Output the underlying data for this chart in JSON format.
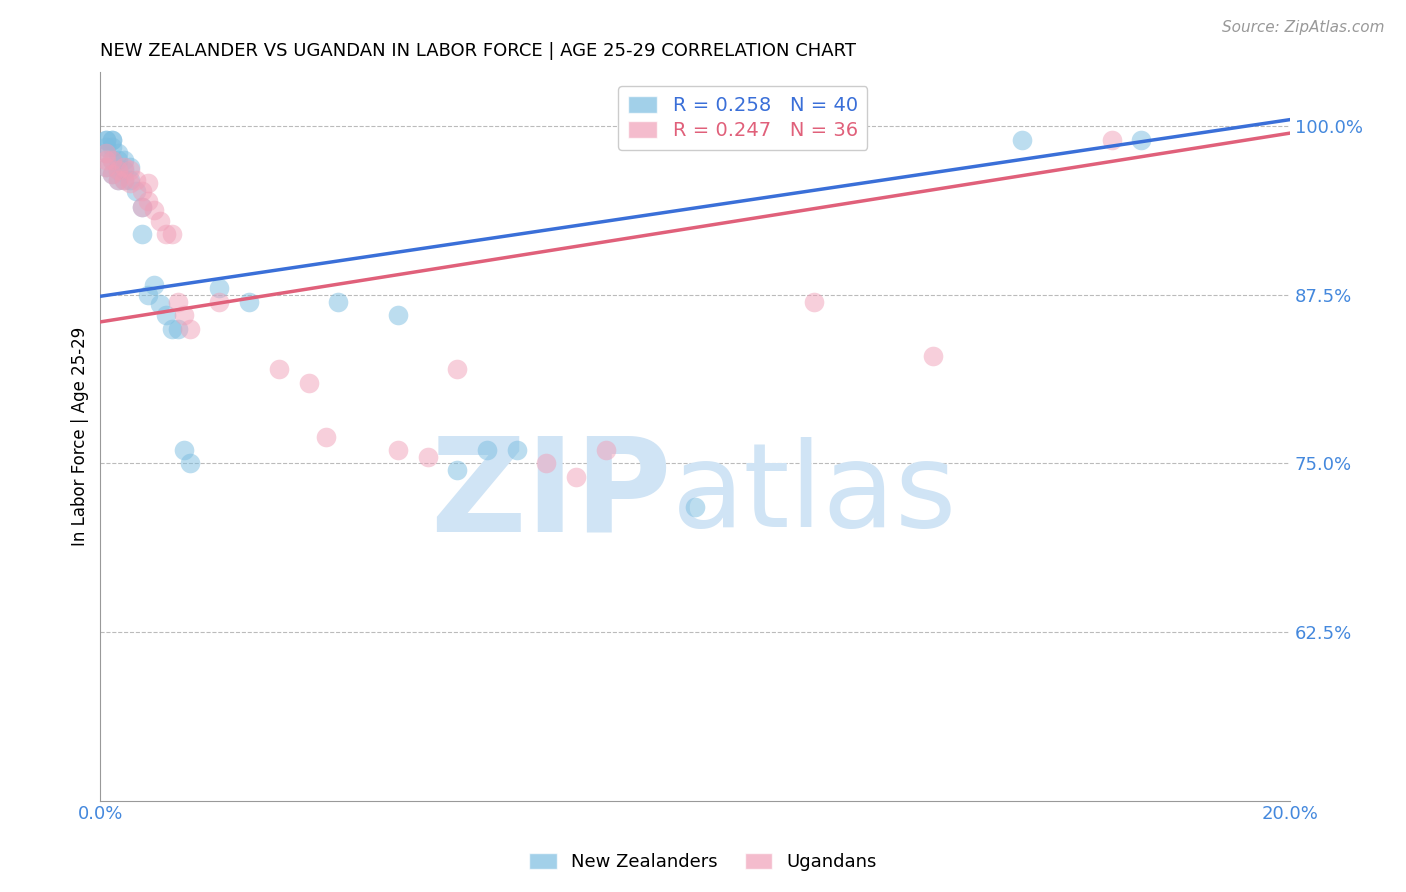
{
  "title": "NEW ZEALANDER VS UGANDAN IN LABOR FORCE | AGE 25-29 CORRELATION CHART",
  "source": "Source: ZipAtlas.com",
  "ylabel": "In Labor Force | Age 25-29",
  "xlim": [
    0.0,
    0.2
  ],
  "ylim": [
    0.5,
    1.04
  ],
  "xticks": [
    0.0,
    0.02,
    0.04,
    0.06,
    0.08,
    0.1,
    0.12,
    0.14,
    0.16,
    0.18,
    0.2
  ],
  "xticklabels": [
    "0.0%",
    "",
    "",
    "",
    "",
    "",
    "",
    "",
    "",
    "",
    "20.0%"
  ],
  "yticks": [
    0.625,
    0.75,
    0.875,
    1.0
  ],
  "yticklabels": [
    "62.5%",
    "75.0%",
    "87.5%",
    "100.0%"
  ],
  "nz_color": "#7bbde0",
  "ug_color": "#f0a0b8",
  "nz_line_color": "#3a6fd8",
  "ug_line_color": "#e0607a",
  "nz_R": 0.258,
  "nz_N": 40,
  "ug_R": 0.247,
  "ug_N": 36,
  "watermark_color": "#d0e4f5",
  "legend_label_nz": "New Zealanders",
  "legend_label_ug": "Ugandans",
  "nz_x": [
    0.001,
    0.001,
    0.001,
    0.001,
    0.001,
    0.002,
    0.002,
    0.002,
    0.002,
    0.002,
    0.003,
    0.003,
    0.003,
    0.003,
    0.004,
    0.004,
    0.004,
    0.005,
    0.005,
    0.006,
    0.007,
    0.007,
    0.008,
    0.009,
    0.01,
    0.011,
    0.012,
    0.013,
    0.014,
    0.015,
    0.02,
    0.025,
    0.04,
    0.05,
    0.06,
    0.065,
    0.07,
    0.1,
    0.155,
    0.175
  ],
  "nz_y": [
    0.99,
    0.99,
    0.985,
    0.98,
    0.97,
    0.99,
    0.99,
    0.985,
    0.975,
    0.965,
    0.98,
    0.975,
    0.968,
    0.96,
    0.975,
    0.968,
    0.96,
    0.97,
    0.96,
    0.952,
    0.94,
    0.92,
    0.875,
    0.882,
    0.868,
    0.86,
    0.85,
    0.85,
    0.76,
    0.75,
    0.88,
    0.87,
    0.87,
    0.86,
    0.745,
    0.76,
    0.76,
    0.718,
    0.99,
    0.99
  ],
  "ug_x": [
    0.001,
    0.001,
    0.001,
    0.002,
    0.002,
    0.003,
    0.003,
    0.004,
    0.004,
    0.005,
    0.005,
    0.006,
    0.007,
    0.007,
    0.008,
    0.008,
    0.009,
    0.01,
    0.011,
    0.012,
    0.013,
    0.014,
    0.015,
    0.02,
    0.03,
    0.035,
    0.038,
    0.05,
    0.055,
    0.06,
    0.075,
    0.08,
    0.085,
    0.12,
    0.14,
    0.17
  ],
  "ug_y": [
    0.98,
    0.975,
    0.97,
    0.975,
    0.965,
    0.968,
    0.96,
    0.97,
    0.96,
    0.968,
    0.958,
    0.96,
    0.952,
    0.94,
    0.958,
    0.945,
    0.938,
    0.93,
    0.92,
    0.92,
    0.87,
    0.86,
    0.85,
    0.87,
    0.82,
    0.81,
    0.77,
    0.76,
    0.755,
    0.82,
    0.75,
    0.74,
    0.76,
    0.87,
    0.83,
    0.99
  ],
  "nz_line_x": [
    0.0,
    0.2
  ],
  "nz_line_y": [
    0.874,
    1.005
  ],
  "ug_line_x": [
    0.0,
    0.2
  ],
  "ug_line_y": [
    0.855,
    0.995
  ]
}
